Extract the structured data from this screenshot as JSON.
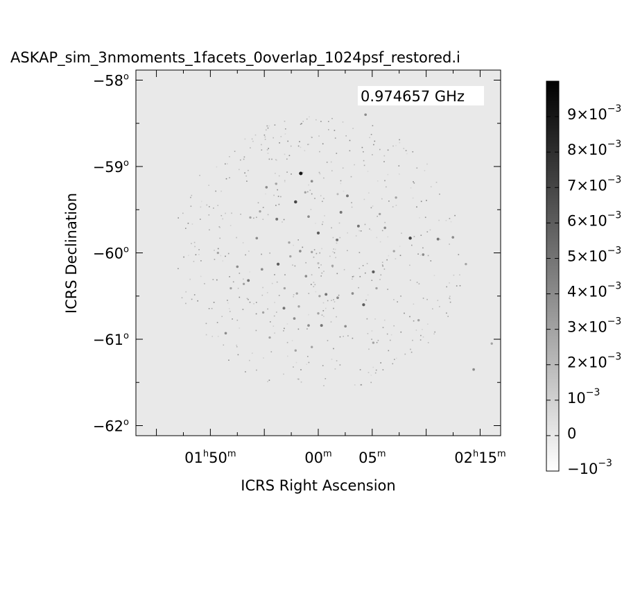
{
  "chart_data": {
    "type": "heatmap",
    "title": "ASKAP_sim_3nmoments_1facets_0overlap_1024psf_restored.i",
    "frequency_label": "0.974657 GHz",
    "xlabel": "ICRS Right Ascension",
    "ylabel": "ICRS Declination",
    "x_ticks": [
      {
        "h": "02",
        "m": "15",
        "hr": "h",
        "mr": "m",
        "hours": 2.25
      },
      {
        "h": "",
        "m": "05",
        "hr": "",
        "mr": "m",
        "hours": 2.0833
      },
      {
        "h": "",
        "m": "00",
        "hr": "",
        "mr": "m",
        "hours": 2.0
      },
      {
        "h": "01",
        "m": "50",
        "hr": "h",
        "mr": "m",
        "hours": 1.8333
      }
    ],
    "y_ticks": [
      {
        "label": "−58",
        "deg": "o",
        "value": -58
      },
      {
        "label": "−59",
        "deg": "o",
        "value": -59
      },
      {
        "label": "−60",
        "deg": "o",
        "value": -60
      },
      {
        "label": "−61",
        "deg": "o",
        "value": -61
      },
      {
        "label": "−62",
        "deg": "o",
        "value": -62
      }
    ],
    "colorbar": {
      "min": -0.001,
      "max": 0.01,
      "ticks": [
        {
          "mant": "9×10",
          "exp": "−3",
          "value": 0.009
        },
        {
          "mant": "8×10",
          "exp": "−3",
          "value": 0.008
        },
        {
          "mant": "7×10",
          "exp": "−3",
          "value": 0.007
        },
        {
          "mant": "6×10",
          "exp": "−3",
          "value": 0.006
        },
        {
          "mant": "5×10",
          "exp": "−3",
          "value": 0.005
        },
        {
          "mant": "4×10",
          "exp": "−3",
          "value": 0.004
        },
        {
          "mant": "3×10",
          "exp": "−3",
          "value": 0.003
        },
        {
          "mant": "2×10",
          "exp": "−3",
          "value": 0.002
        },
        {
          "mant": "10",
          "exp": "−3",
          "value": 0.001
        },
        {
          "mant": "0",
          "exp": "",
          "value": 0
        },
        {
          "mant": "−10",
          "exp": "−3",
          "value": -0.001
        }
      ]
    },
    "sources": [
      [
        2.0,
        -59.77,
        0.006
      ],
      [
        1.973,
        -59.08,
        0.009
      ],
      [
        1.965,
        -59.41,
        0.007
      ],
      [
        2.085,
        -60.22,
        0.006
      ],
      [
        2.07,
        -60.6,
        0.006
      ],
      [
        2.142,
        -59.83,
        0.007
      ],
      [
        1.947,
        -60.64,
        0.005
      ],
      [
        1.938,
        -60.13,
        0.006
      ],
      [
        1.936,
        -59.61,
        0.005
      ],
      [
        2.035,
        -59.53,
        0.005
      ],
      [
        2.005,
        -60.84,
        0.005
      ],
      [
        1.857,
        -60.93,
        0.004
      ],
      [
        1.892,
        -60.32,
        0.005
      ],
      [
        2.062,
        -59.69,
        0.005
      ],
      [
        2.029,
        -59.85,
        0.005
      ],
      [
        2.012,
        -60.48,
        0.005
      ],
      [
        1.985,
        -59.58,
        0.004
      ],
      [
        1.981,
        -60.27,
        0.004
      ],
      [
        2.045,
        -59.34,
        0.005
      ],
      [
        2.185,
        -59.84,
        0.005
      ],
      [
        2.103,
        -59.71,
        0.004
      ],
      [
        1.905,
        -59.83,
        0.004
      ],
      [
        1.913,
        -60.19,
        0.004
      ],
      [
        2.053,
        -60.47,
        0.004
      ],
      [
        1.99,
        -59.17,
        0.004
      ],
      [
        2.162,
        -60.02,
        0.004
      ],
      [
        2.155,
        -60.78,
        0.003
      ],
      [
        1.972,
        -59.98,
        0.004
      ],
      [
        1.967,
        -60.47,
        0.003
      ],
      [
        2.022,
        -60.15,
        0.003
      ],
      [
        1.92,
        -59.24,
        0.004
      ],
      [
        1.963,
        -60.76,
        0.004
      ],
      [
        2.208,
        -59.82,
        0.004
      ],
      [
        2.24,
        -61.35,
        0.004
      ],
      [
        2.268,
        -61.05,
        0.003
      ],
      [
        1.875,
        -60.16,
        0.004
      ],
      [
        1.957,
        -60.04,
        0.003
      ],
      [
        2.03,
        -60.52,
        0.004
      ],
      [
        2.002,
        -60.5,
        0.003
      ],
      [
        2.09,
        -60.41,
        0.003
      ],
      [
        1.885,
        -60.36,
        0.003
      ],
      [
        2.073,
        -58.4,
        0.004
      ],
      [
        1.948,
        -60.41,
        0.003
      ],
      [
        1.895,
        -59.59,
        0.003
      ],
      [
        2.117,
        -59.98,
        0.003
      ],
      [
        1.925,
        -60.98,
        0.003
      ],
      [
        2.0,
        -60.7,
        0.003
      ],
      [
        1.915,
        -60.69,
        0.003
      ],
      [
        2.085,
        -61.04,
        0.003
      ],
      [
        1.955,
        -59.88,
        0.003
      ],
      [
        1.99,
        -59.99,
        0.003
      ],
      [
        2.042,
        -60.85,
        0.004
      ],
      [
        1.97,
        -60.62,
        0.003
      ],
      [
        1.985,
        -60.84,
        0.004
      ],
      [
        1.935,
        -59.2,
        0.003
      ],
      [
        2.095,
        -59.55,
        0.003
      ],
      [
        2.228,
        -60.13,
        0.003
      ],
      [
        1.965,
        -61.13,
        0.003
      ],
      [
        1.91,
        -59.52,
        0.003
      ],
      [
        1.99,
        -61.09,
        0.003
      ],
      [
        1.845,
        -60.0,
        0.003
      ],
      [
        1.865,
        -60.41,
        0.003
      ],
      [
        2.12,
        -59.36,
        0.003
      ],
      [
        1.98,
        -59.3,
        0.003
      ],
      [
        2.0,
        -60.12,
        0.002
      ],
      [
        2.03,
        -59.32,
        0.002
      ]
    ],
    "noise_seed": 7
  }
}
